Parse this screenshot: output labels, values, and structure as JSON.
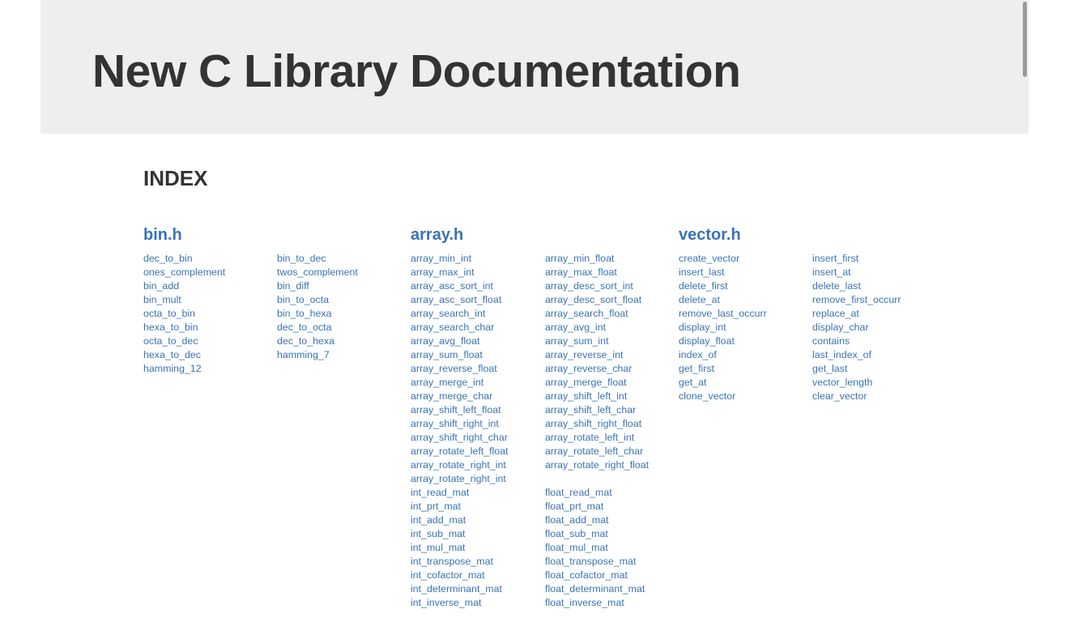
{
  "page": {
    "title": "New C Library Documentation",
    "index_heading": "INDEX"
  },
  "colors": {
    "header_bg": "#eeeeee",
    "title_text": "#333333",
    "link": "#3a73b5"
  },
  "sections": [
    {
      "title": "bin.h",
      "columns": [
        [
          "dec_to_bin",
          "ones_complement",
          "bin_add",
          "bin_mult",
          "octa_to_bin",
          "hexa_to_bin",
          "octa_to_dec",
          "hexa_to_dec",
          "hamming_12"
        ],
        [
          "bin_to_dec",
          "twos_complement",
          "bin_diff",
          "bin_to_octa",
          "bin_to_hexa",
          "dec_to_octa",
          "dec_to_hexa",
          "hamming_7"
        ]
      ]
    },
    {
      "title": "array.h",
      "columns": [
        [
          "array_min_int",
          "array_max_int",
          "array_asc_sort_int",
          "array_asc_sort_float",
          "array_search_int",
          "array_search_char",
          "array_avg_float",
          "array_sum_float",
          "array_reverse_float",
          "array_merge_int",
          "array_merge_char",
          "array_shift_left_float",
          "array_shift_right_int",
          "array_shift_right_char",
          "array_rotate_left_float",
          "array_rotate_right_int",
          "array_rotate_right_int",
          "int_read_mat",
          "int_prt_mat",
          "int_add_mat",
          "int_sub_mat",
          "int_mul_mat",
          "int_transpose_mat",
          "int_cofactor_mat",
          "int_determinant_mat",
          "int_inverse_mat"
        ],
        [
          "array_min_float",
          "array_max_float",
          "array_desc_sort_int",
          "array_desc_sort_float",
          "array_search_float",
          "array_avg_int",
          "array_sum_int",
          "array_reverse_int",
          "array_reverse_char",
          "array_merge_float",
          "array_shift_left_int",
          "array_shift_left_char",
          "array_shift_right_float",
          "array_rotate_left_int",
          "array_rotate_left_char",
          "array_rotate_right_float",
          "",
          "float_read_mat",
          "float_prt_mat",
          "float_add_mat",
          "float_sub_mat",
          "float_mul_mat",
          "float_transpose_mat",
          "float_cofactor_mat",
          "float_determinant_mat",
          "float_inverse_mat"
        ]
      ]
    },
    {
      "title": "vector.h",
      "columns": [
        [
          "create_vector",
          "insert_last",
          "delete_first",
          "delete_at",
          "remove_last_occurr",
          "display_int",
          "display_float",
          "index_of",
          "get_first",
          "get_at",
          "clone_vector"
        ],
        [
          "insert_first",
          "insert_at",
          "delete_last",
          "remove_first_occurr",
          "replace_at",
          "display_char",
          "contains",
          "last_index_of",
          "get_last",
          "vector_length",
          "clear_vector"
        ]
      ]
    }
  ]
}
